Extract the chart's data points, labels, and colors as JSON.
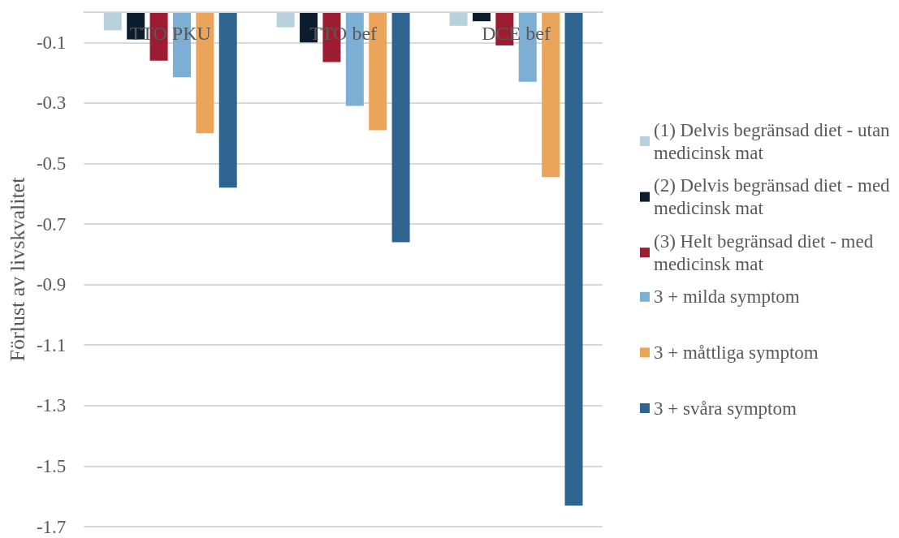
{
  "chart_data": {
    "type": "bar",
    "ylabel": "Förlust av livskvalitet",
    "categories": [
      "TTO PKU",
      "TTO bef",
      "DCE bef"
    ],
    "series": [
      {
        "name": "(1) Delvis begränsad diet - utan medicinsk mat",
        "color": "#b9d1dd",
        "values": [
          -0.06,
          -0.05,
          -0.045
        ]
      },
      {
        "name": "(2) Delvis begränsad diet - med medicinsk mat",
        "color": "#0b1c2e",
        "values": [
          -0.09,
          -0.1,
          -0.03
        ]
      },
      {
        "name": "(3) Helt begränsad diet - med medicinsk mat",
        "color": "#9e1c31",
        "values": [
          -0.16,
          -0.165,
          -0.11
        ]
      },
      {
        "name": "3 + milda symptom",
        "color": "#7daed4",
        "values": [
          -0.215,
          -0.31,
          -0.23
        ]
      },
      {
        "name": "3 + måttliga symptom",
        "color": "#eba55b",
        "values": [
          -0.4,
          -0.39,
          -0.545
        ]
      },
      {
        "name": "3 + svåra symptom",
        "color": "#2f6491",
        "values": [
          -0.58,
          -0.76,
          -1.63
        ]
      }
    ],
    "ylim": [
      -1.7,
      0
    ],
    "yticks": [
      -1.7,
      -1.5,
      -1.3,
      -1.1,
      -0.9,
      -0.7,
      -0.5,
      -0.3,
      -0.1
    ],
    "grid": "y",
    "legend": "right"
  }
}
